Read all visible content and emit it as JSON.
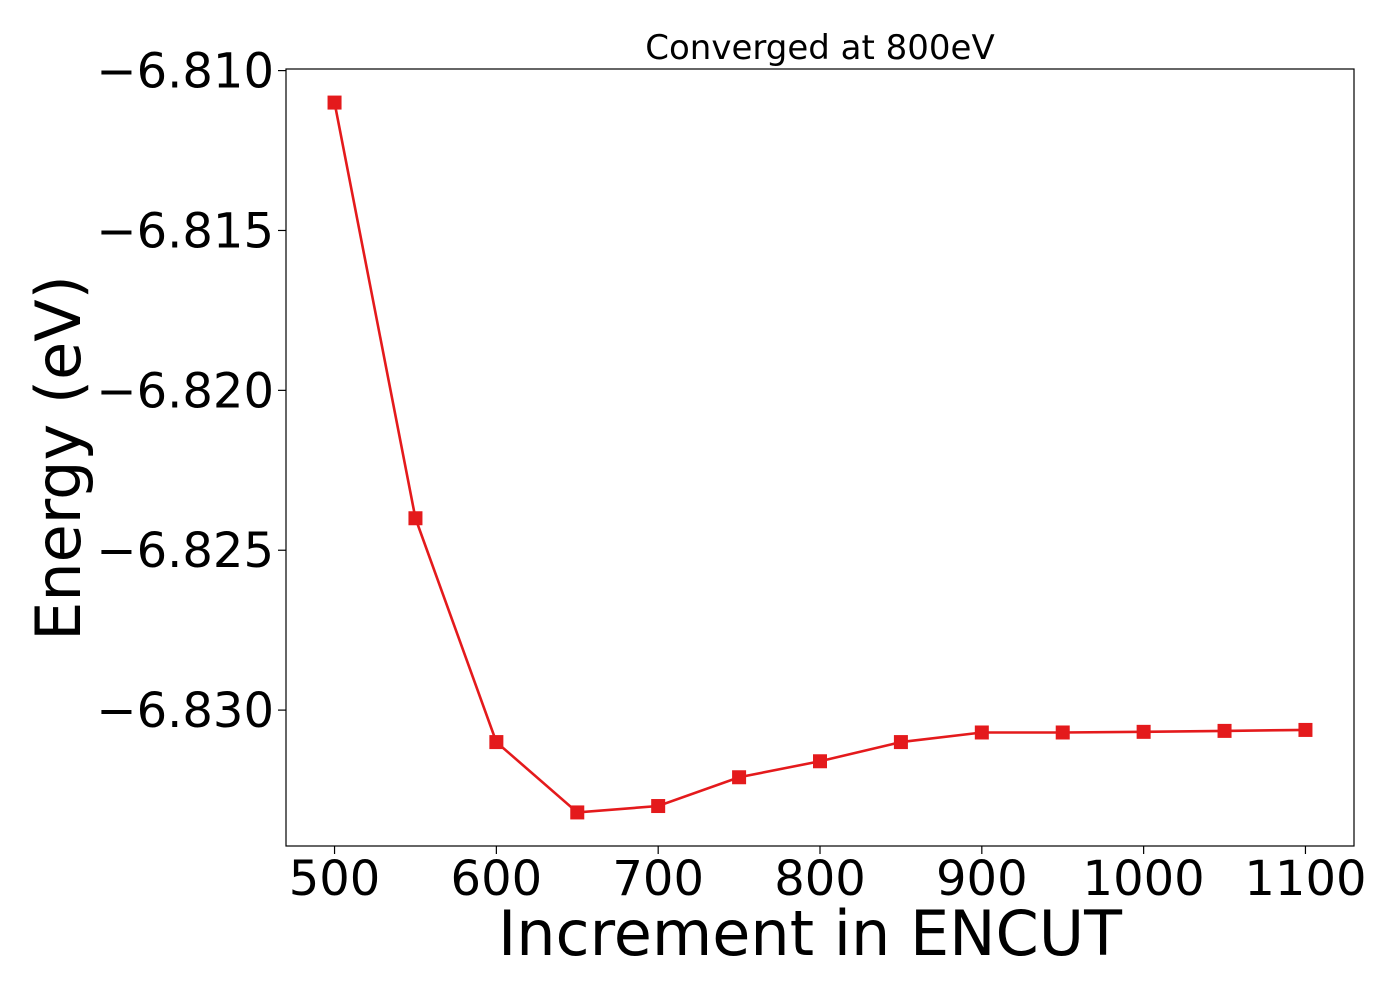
{
  "chart_data": {
    "type": "line",
    "title": "Converged at 800eV",
    "xlabel": "Increment in ENCUT",
    "ylabel": "Energy (eV)",
    "xlim": [
      470,
      1130
    ],
    "ylim": [
      -6.83425,
      -6.80995
    ],
    "xticks": [
      500,
      600,
      700,
      800,
      900,
      1000,
      1100
    ],
    "xtick_labels": [
      "500",
      "600",
      "700",
      "800",
      "900",
      "1000",
      "1100"
    ],
    "yticks": [
      -6.81,
      -6.815,
      -6.82,
      -6.825,
      -6.83
    ],
    "ytick_labels": [
      "−6.810",
      "−6.815",
      "−6.820",
      "−6.825",
      "−6.830"
    ],
    "grid": false,
    "series": [
      {
        "color": "#e41a1c",
        "marker": "square",
        "x": [
          500,
          550,
          600,
          650,
          700,
          750,
          800,
          850,
          900,
          950,
          1000,
          1050,
          1100
        ],
        "y": [
          -6.811,
          -6.824,
          -6.831,
          -6.8332,
          -6.833,
          -6.8321,
          -6.8316,
          -6.831,
          -6.8307,
          -6.8307,
          -6.83068,
          -6.83065,
          -6.83062
        ]
      }
    ]
  }
}
